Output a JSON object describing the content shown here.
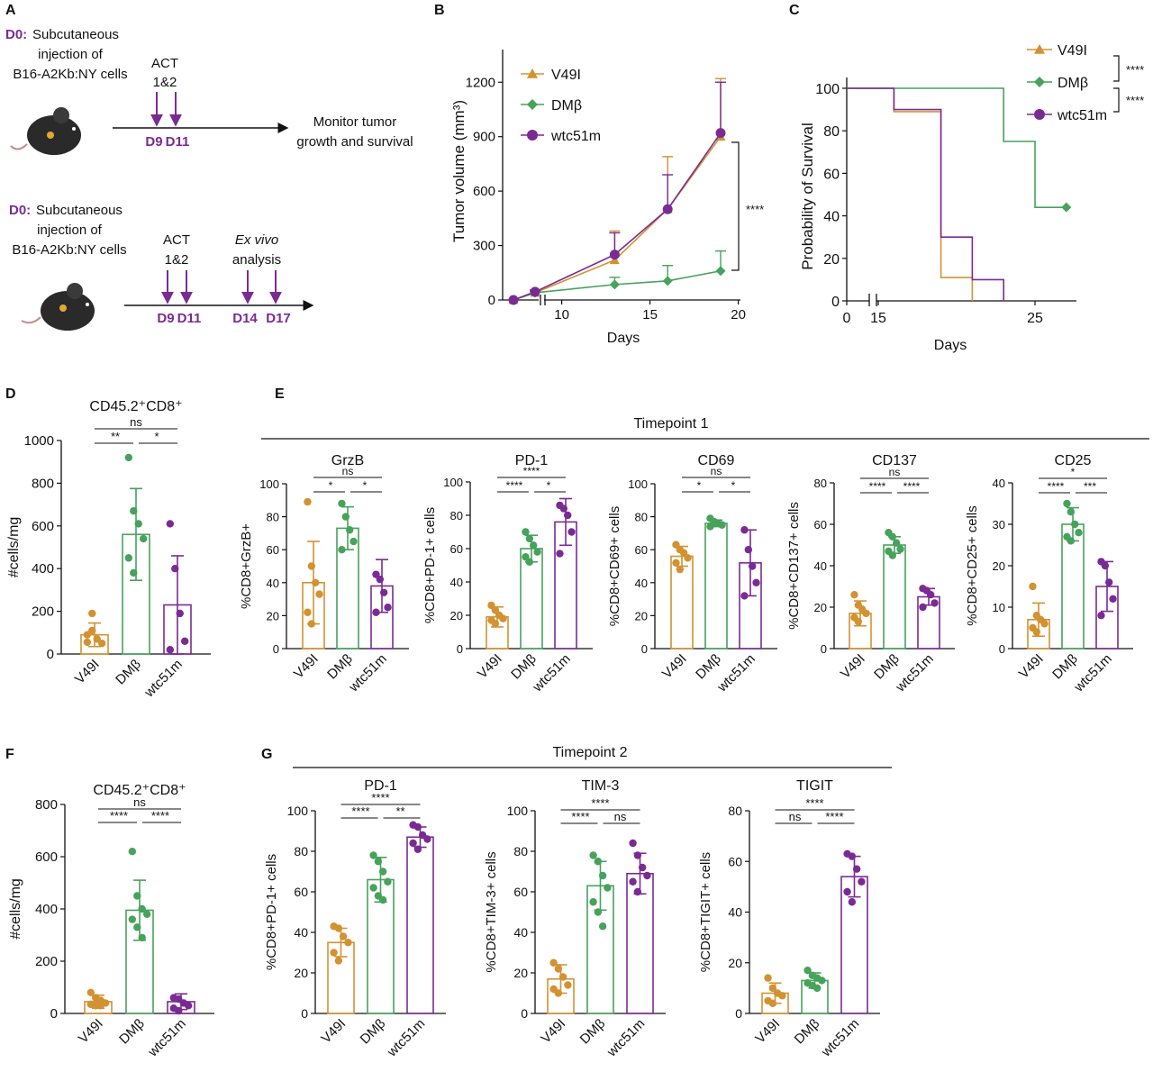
{
  "colors": {
    "V49I": "#d39231",
    "DMb": "#47a25c",
    "wtc51m": "#7a2b93",
    "purple": "#7a2b93",
    "ink": "#111111"
  },
  "panel_letters": {
    "A": "A",
    "B": "B",
    "C": "C",
    "D": "D",
    "E": "E",
    "F": "F",
    "G": "G"
  },
  "schematic": {
    "top": {
      "d0_label": "D0:",
      "d0_text": [
        "Subcutaneous",
        "injection of",
        "B16-A2Kb:NY cells"
      ],
      "act": [
        "ACT",
        "1&2"
      ],
      "days": [
        "D9",
        "D11"
      ],
      "monitor": [
        "Monitor tumor",
        "growth and survival"
      ]
    },
    "bottom": {
      "d0_label": "D0:",
      "d0_text": [
        "Subcutaneous",
        "injection of",
        "B16-A2Kb:NY cells"
      ],
      "act": [
        "ACT",
        "1&2"
      ],
      "exvivo": [
        "Ex vivo",
        "analysis"
      ],
      "days": [
        "D9",
        "D11",
        "D14",
        "D17"
      ]
    }
  },
  "chart_data": [
    {
      "panel": "B",
      "type": "line",
      "xlabel": "Days",
      "ylabel": "Tumor volume (mm³)",
      "xticks": [
        10,
        15,
        20
      ],
      "yticks": [
        0,
        300,
        600,
        900,
        1200
      ],
      "ylim": [
        0,
        1380
      ],
      "series": [
        {
          "name": "V49I",
          "color": "#d39231",
          "marker": "triangle",
          "x": [
            7,
            9,
            13,
            16,
            19
          ],
          "y": [
            0,
            40,
            220,
            500,
            900
          ],
          "err": [
            0,
            10,
            160,
            290,
            320
          ]
        },
        {
          "name": "DMβ",
          "color": "#47a25c",
          "marker": "diamond",
          "x": [
            7,
            9,
            13,
            16,
            19
          ],
          "y": [
            0,
            40,
            85,
            105,
            160
          ],
          "err": [
            0,
            8,
            40,
            85,
            110
          ]
        },
        {
          "name": "wtc51m",
          "color": "#7a2b93",
          "marker": "circle",
          "x": [
            7,
            9,
            13,
            16,
            19
          ],
          "y": [
            0,
            45,
            250,
            500,
            920
          ],
          "err": [
            0,
            10,
            120,
            190,
            280
          ]
        }
      ],
      "significance": "****",
      "legend": "top-left"
    },
    {
      "panel": "C",
      "type": "line",
      "xlabel": "Days",
      "ylabel": "Probability of Survival",
      "xticks": [
        0,
        15,
        25
      ],
      "yticks": [
        0,
        20,
        40,
        60,
        80,
        100
      ],
      "series": [
        {
          "name": "V49I",
          "color": "#d39231",
          "marker": "triangle",
          "x": [
            13,
            16,
            16,
            19,
            19,
            21,
            21
          ],
          "y": [
            100,
            100,
            89,
            89,
            11,
            11,
            0
          ]
        },
        {
          "name": "DMβ",
          "color": "#47a25c",
          "marker": "diamond",
          "x": [
            13,
            23,
            23,
            25,
            25,
            27
          ],
          "y": [
            100,
            100,
            75,
            75,
            44,
            44
          ]
        },
        {
          "name": "wtc51m",
          "color": "#7a2b93",
          "marker": "circle",
          "x": [
            13,
            16,
            16,
            19,
            19,
            21,
            21,
            23,
            23
          ],
          "y": [
            100,
            100,
            90,
            90,
            30,
            30,
            10,
            10,
            0
          ]
        }
      ],
      "significance": [
        "****",
        "****"
      ],
      "legend": "top-right"
    },
    {
      "panel": "D",
      "type": "bar",
      "title": "CD45.2⁺CD8⁺",
      "ylabel": "#cells/mg",
      "categories": [
        "V49I",
        "DMβ",
        "wtc51m"
      ],
      "yticks": [
        0,
        200,
        400,
        600,
        800,
        1000
      ],
      "ylim": [
        0,
        1000
      ],
      "values": [
        90,
        560,
        230
      ],
      "err": [
        55,
        215,
        230
      ],
      "points": [
        [
          55,
          110,
          70,
          50,
          90,
          190
        ],
        [
          920,
          670,
          610,
          540,
          450,
          380
        ],
        [
          610,
          400,
          190,
          60,
          20
        ]
      ],
      "sig": [
        {
          "from": 0,
          "to": 1,
          "label": "**",
          "row": 0
        },
        {
          "from": 1,
          "to": 2,
          "label": "*",
          "row": 0
        },
        {
          "from": 0,
          "to": 2,
          "label": "ns",
          "row": 1
        }
      ]
    },
    {
      "panel": "E1",
      "group": "Timepoint 1",
      "type": "bar",
      "title": "GrzB",
      "ylabel": "%CD8+GrzB+",
      "categories": [
        "V49I",
        "DMβ",
        "wtc51m"
      ],
      "yticks": [
        0,
        20,
        40,
        60,
        80,
        100
      ],
      "ylim": [
        0,
        100
      ],
      "values": [
        40,
        73,
        38
      ],
      "err": [
        25,
        13,
        16
      ],
      "points": [
        [
          89,
          50,
          40,
          33,
          22,
          15
        ],
        [
          88,
          80,
          72,
          65,
          60
        ],
        [
          45,
          42,
          34,
          25,
          22
        ]
      ],
      "sig": [
        {
          "from": 0,
          "to": 1,
          "label": "*",
          "row": 0
        },
        {
          "from": 1,
          "to": 2,
          "label": "*",
          "row": 0
        },
        {
          "from": 0,
          "to": 2,
          "label": "ns",
          "row": 1
        }
      ]
    },
    {
      "panel": "E2",
      "group": "Timepoint 1",
      "type": "bar",
      "title": "PD-1",
      "ylabel": "%CD8+PD-1+ cells",
      "categories": [
        "V49I",
        "DMβ",
        "wtc51m"
      ],
      "yticks": [
        0,
        20,
        40,
        60,
        80,
        100
      ],
      "ylim": [
        0,
        100
      ],
      "values": [
        19,
        60,
        76
      ],
      "err": [
        6,
        8,
        14
      ],
      "points": [
        [
          26,
          23,
          20,
          18,
          17,
          15
        ],
        [
          70,
          66,
          62,
          58,
          55,
          52
        ],
        [
          86,
          84,
          80,
          70,
          57
        ]
      ],
      "sig": [
        {
          "from": 0,
          "to": 1,
          "label": "****",
          "row": 0
        },
        {
          "from": 1,
          "to": 2,
          "label": "*",
          "row": 0
        },
        {
          "from": 0,
          "to": 2,
          "label": "****",
          "row": 1
        }
      ]
    },
    {
      "panel": "E3",
      "group": "Timepoint 1",
      "type": "bar",
      "title": "CD69",
      "ylabel": "%CD8+CD69+ cells",
      "categories": [
        "V49I",
        "DMβ",
        "wtc51m"
      ],
      "yticks": [
        0,
        20,
        40,
        60,
        80,
        100
      ],
      "ylim": [
        0,
        100
      ],
      "values": [
        56,
        76,
        52
      ],
      "err": [
        6,
        2,
        20
      ],
      "points": [
        [
          63,
          60,
          58,
          55,
          52,
          48
        ],
        [
          79,
          77,
          76,
          75,
          74,
          76
        ],
        [
          72,
          60,
          50,
          40,
          32
        ]
      ],
      "sig": [
        {
          "from": 0,
          "to": 1,
          "label": "*",
          "row": 0
        },
        {
          "from": 1,
          "to": 2,
          "label": "*",
          "row": 0
        },
        {
          "from": 0,
          "to": 2,
          "label": "ns",
          "row": 1
        }
      ]
    },
    {
      "panel": "E4",
      "group": "Timepoint 1",
      "type": "bar",
      "title": "CD137",
      "ylabel": "%CD8+CD137+ cells",
      "categories": [
        "V49I",
        "DMβ",
        "wtc51m"
      ],
      "yticks": [
        0,
        20,
        40,
        60,
        80
      ],
      "ylim": [
        0,
        80
      ],
      "values": [
        17,
        50,
        25
      ],
      "err": [
        6,
        4,
        4
      ],
      "points": [
        [
          26,
          21,
          19,
          17,
          15,
          13
        ],
        [
          56,
          54,
          51,
          48,
          47,
          45
        ],
        [
          29,
          28,
          26,
          22,
          20
        ]
      ],
      "sig": [
        {
          "from": 0,
          "to": 1,
          "label": "****",
          "row": 0
        },
        {
          "from": 1,
          "to": 2,
          "label": "****",
          "row": 0
        },
        {
          "from": 0,
          "to": 2,
          "label": "ns",
          "row": 1
        }
      ]
    },
    {
      "panel": "E5",
      "group": "Timepoint 1",
      "type": "bar",
      "title": "CD25",
      "ylabel": "%CD8+CD25+ cells",
      "categories": [
        "V49I",
        "DMβ",
        "wtc51m"
      ],
      "yticks": [
        0,
        10,
        20,
        30,
        40
      ],
      "ylim": [
        0,
        40
      ],
      "values": [
        7,
        30,
        15
      ],
      "err": [
        4,
        4,
        6
      ],
      "points": [
        [
          15,
          8,
          7,
          6,
          5,
          4
        ],
        [
          35,
          33,
          30,
          28,
          27,
          26
        ],
        [
          21,
          20,
          16,
          12,
          8
        ]
      ],
      "sig": [
        {
          "from": 0,
          "to": 1,
          "label": "****",
          "row": 0
        },
        {
          "from": 1,
          "to": 2,
          "label": "***",
          "row": 0
        },
        {
          "from": 0,
          "to": 2,
          "label": "*",
          "row": 1
        }
      ]
    },
    {
      "panel": "F",
      "type": "bar",
      "title": "CD45.2⁺CD8⁺",
      "ylabel": "#cells/mg",
      "categories": [
        "V49I",
        "DMβ",
        "wtc51m"
      ],
      "yticks": [
        0,
        200,
        400,
        600,
        800
      ],
      "ylim": [
        0,
        800
      ],
      "values": [
        45,
        395,
        45
      ],
      "err": [
        25,
        115,
        30
      ],
      "points": [
        [
          80,
          60,
          50,
          40,
          35,
          30,
          30
        ],
        [
          620,
          450,
          400,
          380,
          360,
          330,
          290
        ],
        [
          60,
          55,
          40,
          30,
          20,
          10
        ]
      ],
      "sig": [
        {
          "from": 0,
          "to": 1,
          "label": "****",
          "row": 0
        },
        {
          "from": 1,
          "to": 2,
          "label": "****",
          "row": 0
        },
        {
          "from": 0,
          "to": 2,
          "label": "ns",
          "row": 1
        }
      ]
    },
    {
      "panel": "G1",
      "group": "Timepoint 2",
      "type": "bar",
      "title": "PD-1",
      "ylabel": "%CD8+PD-1+ cells",
      "categories": [
        "V49I",
        "DMβ",
        "wtc51m"
      ],
      "yticks": [
        0,
        20,
        40,
        60,
        80,
        100
      ],
      "ylim": [
        0,
        100
      ],
      "values": [
        35,
        66,
        87
      ],
      "err": [
        7,
        11,
        5
      ],
      "points": [
        [
          43,
          42,
          38,
          35,
          30,
          26
        ],
        [
          78,
          75,
          70,
          65,
          62,
          58,
          56
        ],
        [
          93,
          92,
          88,
          86,
          84,
          81
        ]
      ],
      "sig": [
        {
          "from": 0,
          "to": 1,
          "label": "****",
          "row": 0
        },
        {
          "from": 1,
          "to": 2,
          "label": "**",
          "row": 0
        },
        {
          "from": 0,
          "to": 2,
          "label": "****",
          "row": 1
        }
      ]
    },
    {
      "panel": "G2",
      "group": "Timepoint 2",
      "type": "bar",
      "title": "TIM-3",
      "ylabel": "%CD8+TIM-3+ cells",
      "categories": [
        "V49I",
        "DMβ",
        "wtc51m"
      ],
      "yticks": [
        0,
        20,
        40,
        60,
        80,
        100
      ],
      "ylim": [
        0,
        100
      ],
      "values": [
        17,
        63,
        69
      ],
      "err": [
        7,
        12,
        10
      ],
      "points": [
        [
          25,
          22,
          18,
          14,
          12,
          10
        ],
        [
          78,
          75,
          68,
          62,
          55,
          50,
          43
        ],
        [
          84,
          78,
          72,
          68,
          65,
          60
        ]
      ],
      "sig": [
        {
          "from": 0,
          "to": 1,
          "label": "****",
          "row": 0
        },
        {
          "from": 1,
          "to": 2,
          "label": "ns",
          "row": 0
        },
        {
          "from": 0,
          "to": 2,
          "label": "****",
          "row": 1
        }
      ]
    },
    {
      "panel": "G3",
      "group": "Timepoint 2",
      "type": "bar",
      "title": "TIGIT",
      "ylabel": "%CD8+TIGIT+ cells",
      "categories": [
        "V49I",
        "DMβ",
        "wtc51m"
      ],
      "yticks": [
        0,
        20,
        40,
        60,
        80
      ],
      "ylim": [
        0,
        80
      ],
      "values": [
        8,
        13,
        54
      ],
      "err": [
        4,
        3,
        8
      ],
      "points": [
        [
          14,
          10,
          8,
          7,
          5,
          4
        ],
        [
          17,
          15,
          14,
          13,
          12,
          11,
          10
        ],
        [
          63,
          62,
          57,
          52,
          48,
          44
        ]
      ],
      "sig": [
        {
          "from": 0,
          "to": 1,
          "label": "ns",
          "row": 0
        },
        {
          "from": 1,
          "to": 2,
          "label": "****",
          "row": 0
        },
        {
          "from": 0,
          "to": 2,
          "label": "****",
          "row": 1
        }
      ]
    }
  ],
  "group_titles": {
    "tp1": "Timepoint 1",
    "tp2": "Timepoint 2"
  }
}
